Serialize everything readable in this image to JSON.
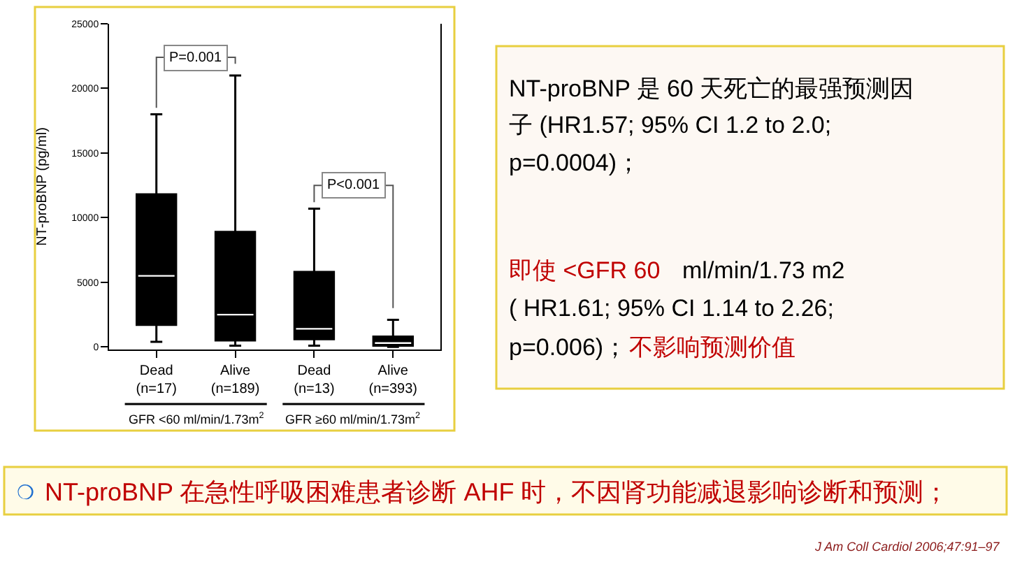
{
  "chart_data": {
    "type": "box",
    "ylabel": "NT-proBNP (pg/ml)",
    "categories": [
      "Dead\n(n=17)",
      "Alive\n(n=189)",
      "Dead\n(n=13)",
      "Alive\n(n=393)"
    ],
    "series": [
      {
        "color": "#000000",
        "boxes": [
          {
            "low": 400,
            "q1": 1700,
            "median": 5500,
            "q3": 11800,
            "high": 18000
          },
          {
            "low": 100,
            "q1": 500,
            "median": 2500,
            "q3": 8900,
            "high": 21000
          },
          {
            "low": 100,
            "q1": 600,
            "median": 1400,
            "q3": 5800,
            "high": 10700
          },
          {
            "low": 0,
            "q1": 100,
            "median": 300,
            "q3": 800,
            "high": 2100
          }
        ]
      }
    ],
    "ylim": [
      -200,
      25000
    ],
    "yticks": [
      0,
      5000,
      10000,
      15000,
      20000,
      25000
    ],
    "annotations": [
      "P=0.001",
      "P<0.001",
      "GFR <60 ml/min/1.73m$^{2}$",
      "GFR ≥60 ml/min/1.73m$^{2}$",
      "NT-proBNP 是 60 天死亡的最强预测因",
      "子 (HR1.57; 95% CI 1.2 to 2.0;",
      "p=0.0004)；",
      "即使 <GFR 60",
      "ml/min/1.73 m2",
      "( HR1.61; 95% CI 1.14 to 2.26;",
      "p=0.006)；",
      "不影响预测价值",
      "❍",
      "NT-proBNP 在急性呼吸困难患者诊断 AHF 时，不因肾功能减退影响诊断和预测；",
      "J Am Coll Cardiol 2006;47:91–97"
    ]
  }
}
